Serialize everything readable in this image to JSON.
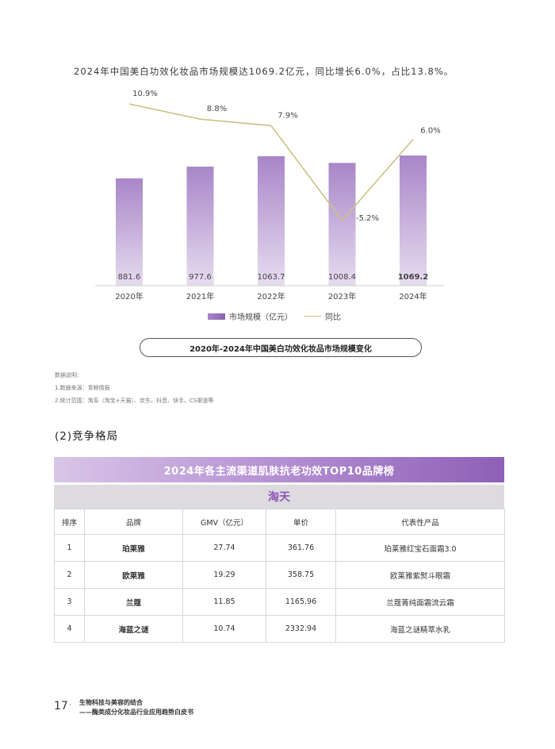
{
  "headline": "2024年中国美白功效化妆品市场规模达1069.2亿元，同比增长6.0%，占比13.8%。",
  "chart_data": {
    "type": "bar",
    "categories": [
      "2020年",
      "2021年",
      "2022年",
      "2023年",
      "2024年"
    ],
    "series": [
      {
        "name": "市场规模（亿元）",
        "type": "bar",
        "values": [
          881.6,
          977.6,
          1063.7,
          1008.4,
          1069.2
        ],
        "labels": [
          "881.6",
          "977.6",
          "1063.7",
          "1008.4",
          "1069.2"
        ]
      },
      {
        "name": "同比",
        "type": "line",
        "values": [
          10.9,
          8.8,
          7.9,
          -5.2,
          6.0
        ],
        "labels": [
          "10.9%",
          "8.8%",
          "7.9%",
          "-5.2%",
          "6.0%"
        ]
      }
    ],
    "title": "2020年-2024年中国美白功效化妆品市场规模变化",
    "colors": {
      "bar_top": "#a886c8",
      "bar_bottom": "#e6dcef",
      "line": "#c8c383"
    }
  },
  "legend": {
    "bar_label": "市场规模（亿元）",
    "line_label": "同比"
  },
  "caption": "2020年-2024年中国美白功效化妆品市场规模变化",
  "notes": [
    "数据说明：",
    "1.数据来源：青眼情报",
    "2.统计范围：淘系（淘宝+天猫）、京东、抖音、快手、CS渠道等"
  ],
  "section_heading": "(2)竞争格局",
  "table": {
    "title": "2024年各主流渠道肌肤抗老功效TOP10品牌榜",
    "subtitle": "淘天",
    "headers": [
      "排序",
      "品牌",
      "GMV（亿元）",
      "单价",
      "代表性产品"
    ],
    "rows": [
      [
        "1",
        "珀莱雅",
        "27.74",
        "361.76",
        "珀莱雅红宝石面霜3.0"
      ],
      [
        "2",
        "欧莱雅",
        "19.29",
        "358.75",
        "欧莱雅紫熨斗眼霜"
      ],
      [
        "3",
        "兰蔻",
        "11.85",
        "1165.96",
        "兰蔻菁纯面霜流云霜"
      ],
      [
        "4",
        "海蓝之谜",
        "10.74",
        "2332.94",
        "海蓝之谜精萃水乳"
      ]
    ],
    "colors": {
      "title_start": "#d9c6e8",
      "title_end": "#8e5fb7",
      "subtitle_bg": "#dddbe0",
      "subtitle_text": "#8d57b5"
    }
  },
  "footer": {
    "page_number": "17",
    "separator": "·",
    "line1": "生物科技与美容的结合",
    "line2": "——酶类成分化妆品行业应用趋势白皮书"
  }
}
